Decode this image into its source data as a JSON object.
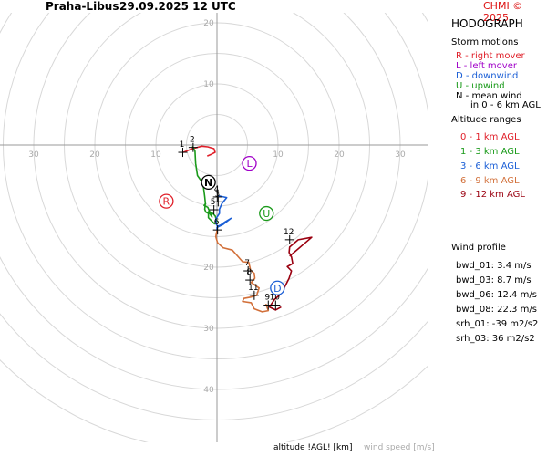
{
  "header": {
    "station": "Praha-Libus",
    "datetime": "29.09.2025 12 UTC",
    "credit": "CHMI © 2025"
  },
  "panel": {
    "title": "HODOGRAPH",
    "storm_motions_title": "Storm motions",
    "storm_motions": [
      {
        "text": "R - right mover",
        "color": "#e0202a"
      },
      {
        "text": "L - left mover",
        "color": "#a000c8"
      },
      {
        "text": "D - downwind",
        "color": "#1b5fd6"
      },
      {
        "text": "U - upwind",
        "color": "#1a9a1a"
      },
      {
        "text": "N - mean wind",
        "color": "#000000"
      },
      {
        "text": "in 0 - 6 km AGL",
        "color": "#000000"
      }
    ],
    "altitude_title": "Altitude ranges",
    "altitude_ranges": [
      {
        "text": "0 - 1 km AGL",
        "color": "#e0202a"
      },
      {
        "text": "1 - 3 km AGL",
        "color": "#1a9a1a"
      },
      {
        "text": "3 - 6 km AGL",
        "color": "#1b5fd6"
      },
      {
        "text": "6 - 9 km AGL",
        "color": "#d2703a"
      },
      {
        "text": "9 - 12 km AGL",
        "color": "#9a0010"
      }
    ],
    "wind_profile_title": "Wind profile",
    "wind_profile": [
      "bwd_01: 3.4 m/s",
      "bwd_03: 8.7 m/s",
      "bwd_06: 12.4 m/s",
      "bwd_08: 22.3 m/s",
      "srh_01: -39 m2/s2",
      "srh_03: 36 m2/s2"
    ]
  },
  "footer": {
    "altitude_label": "altitude !AGL! [km]",
    "wind_speed_label": "wind speed [m/s]"
  },
  "chart_data": {
    "type": "line",
    "title": "HODOGRAPH",
    "ring_labels_x": [
      "30",
      "20",
      "10",
      "10",
      "20",
      "30"
    ],
    "ring_labels_y": [
      "20",
      "10",
      "20",
      "30",
      "40"
    ],
    "ring_values_x": [
      -30,
      -20,
      -10,
      10,
      20,
      30
    ],
    "ring_values_y": [
      20,
      10,
      -20,
      -30,
      -40
    ],
    "xlim": [
      -35,
      35
    ],
    "ylim": [
      -45,
      23
    ],
    "rings": [
      5,
      10,
      15,
      20,
      25,
      30,
      35,
      40,
      45,
      50
    ],
    "series": [
      {
        "name": "0 - 1 km AGL",
        "color": "#e0202a",
        "points": [
          [
            -5.5,
            -1.2
          ],
          [
            -4,
            -0.6
          ],
          [
            -2.5,
            -0.2
          ],
          [
            -1.5,
            -0.3
          ],
          [
            -0.5,
            -0.6
          ],
          [
            -0.3,
            -1.2
          ],
          [
            -0.9,
            -1.5
          ],
          [
            -1.6,
            -1.8
          ]
        ]
      },
      {
        "name": "1 - 3 km AGL",
        "color": "#1a9a1a",
        "points": [
          [
            -4,
            -0.2
          ],
          [
            -3.6,
            -1
          ],
          [
            -3.5,
            -3
          ],
          [
            -3.2,
            -5
          ],
          [
            -2.5,
            -6
          ],
          [
            -2.2,
            -7
          ],
          [
            -2,
            -8.5
          ],
          [
            -1.9,
            -9.5
          ],
          [
            -2,
            -10.5
          ],
          [
            -1.8,
            -11
          ],
          [
            -1.4,
            -11.2
          ],
          [
            -0.8,
            -11.1
          ],
          [
            -0.3,
            -11.6
          ],
          [
            0,
            -12.5
          ],
          [
            -0.4,
            -12.9
          ],
          [
            -1.4,
            -11.9
          ],
          [
            -1.4,
            -10.9
          ],
          [
            -0.8,
            -11.8
          ],
          [
            -1.5,
            -10.2
          ],
          [
            -2.1,
            -9.9
          ],
          [
            -1.8,
            -9.5
          ]
        ]
      },
      {
        "name": "3 - 6 km AGL",
        "color": "#1b5fd6",
        "points": [
          [
            0.2,
            -8.3
          ],
          [
            1.6,
            -8.6
          ],
          [
            0.8,
            -9.6
          ],
          [
            0.4,
            -10.5
          ],
          [
            0.4,
            -11.2
          ],
          [
            -0.2,
            -12.1
          ],
          [
            -0.1,
            -13
          ],
          [
            0.1,
            -13.3
          ],
          [
            0.6,
            -13.1
          ],
          [
            1.3,
            -12.6
          ],
          [
            2.3,
            -12
          ],
          [
            1,
            -13
          ],
          [
            0,
            -13.5
          ],
          [
            0,
            -13.9
          ]
        ]
      },
      {
        "name": "6 - 9 km AGL",
        "color": "#d2703a",
        "points": [
          [
            0,
            -14
          ],
          [
            -0.2,
            -15
          ],
          [
            0.1,
            -16
          ],
          [
            1,
            -16.8
          ],
          [
            2.5,
            -17.2
          ],
          [
            3.5,
            -18.3
          ],
          [
            4.2,
            -19.1
          ],
          [
            5.2,
            -19.2
          ],
          [
            5.5,
            -20.5
          ],
          [
            6.1,
            -21
          ],
          [
            6.2,
            -21.8
          ],
          [
            5.6,
            -22.5
          ],
          [
            6.9,
            -23.4
          ],
          [
            6.5,
            -24.6
          ],
          [
            5.5,
            -24.9
          ],
          [
            4.4,
            -25.1
          ],
          [
            4.2,
            -25.6
          ],
          [
            5.6,
            -25.8
          ],
          [
            6.1,
            -26.8
          ],
          [
            7.4,
            -27.3
          ],
          [
            8.4,
            -27.1
          ],
          [
            8,
            -26
          ]
        ]
      },
      {
        "name": "9 - 12 km AGL",
        "color": "#9a0010",
        "points": [
          [
            10.5,
            -26.5
          ],
          [
            9.6,
            -27
          ],
          [
            8.6,
            -26.5
          ],
          [
            9.4,
            -25.3
          ],
          [
            10.3,
            -24.5
          ],
          [
            11,
            -23.4
          ],
          [
            11.8,
            -21.8
          ],
          [
            12.2,
            -20.6
          ],
          [
            11.5,
            -19.9
          ],
          [
            12.4,
            -19.4
          ],
          [
            12.2,
            -18.3
          ],
          [
            11.8,
            -17.6
          ],
          [
            11.9,
            -16.7
          ],
          [
            13.3,
            -15.5
          ],
          [
            15.5,
            -15.1
          ],
          [
            11.9,
            -18.2
          ]
        ]
      }
    ],
    "altitude_marks": [
      {
        "label": "1",
        "x": -5.6,
        "y": -1.2
      },
      {
        "label": "2",
        "x": -3.9,
        "y": -0.4
      },
      {
        "label": "3",
        "x": 0.2,
        "y": -9.3
      },
      {
        "label": "4",
        "x": 0.1,
        "y": -8.5
      },
      {
        "label": "5",
        "x": -0.5,
        "y": -10.6
      },
      {
        "label": "6",
        "x": 0.1,
        "y": -13.9
      },
      {
        "label": "7",
        "x": 5.1,
        "y": -20.6
      },
      {
        "label": "8",
        "x": 5.4,
        "y": -22.1
      },
      {
        "label": "9",
        "x": 8.4,
        "y": -26.2
      },
      {
        "label": "10",
        "x": 9.6,
        "y": -26.2
      },
      {
        "label": "11",
        "x": 6.1,
        "y": -24.6
      },
      {
        "label": "12",
        "x": 11.9,
        "y": -15.5
      }
    ],
    "storm_motions": [
      {
        "label": "R",
        "x": -8.3,
        "y": -9.2,
        "color": "#e0202a"
      },
      {
        "label": "L",
        "x": 5.3,
        "y": -3.0,
        "color": "#a000c8"
      },
      {
        "label": "D",
        "x": 9.9,
        "y": -23.4,
        "color": "#1b5fd6"
      },
      {
        "label": "U",
        "x": 8.1,
        "y": -11.2,
        "color": "#1a9a1a"
      },
      {
        "label": "N",
        "x": -1.4,
        "y": -6.1,
        "color": "#000000"
      }
    ]
  }
}
